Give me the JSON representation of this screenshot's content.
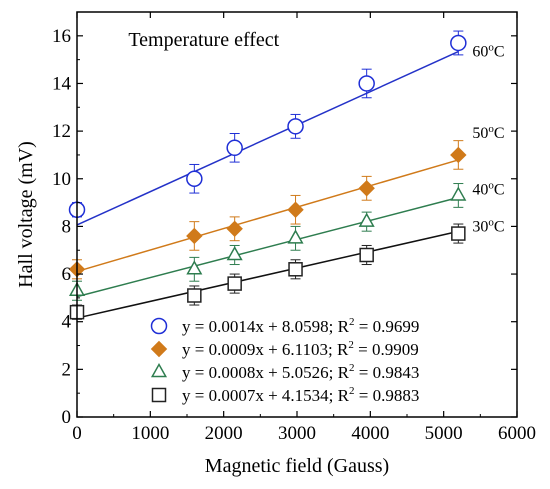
{
  "chart_data": {
    "type": "scatter",
    "title": "Temperature effect",
    "xlabel": "Magnetic field (Gauss)",
    "ylabel": "Hall voltage (mV)",
    "xlim": [
      0,
      6000
    ],
    "ylim": [
      0,
      17
    ],
    "xticks": [
      0,
      1000,
      2000,
      3000,
      4000,
      5000,
      6000
    ],
    "yticks": [
      0,
      2,
      4,
      6,
      8,
      10,
      12,
      14,
      16
    ],
    "grid": false,
    "legend_placement": "bottom-center",
    "series": [
      {
        "name": "60oC",
        "label_text": "60",
        "label_sup": "o",
        "label_unit": "C",
        "marker": "circle",
        "color": "#1f2fd6",
        "line_color": "#2432c8",
        "x": [
          0,
          1600,
          2150,
          2980,
          3950,
          5200
        ],
        "y": [
          8.7,
          10.0,
          11.3,
          12.2,
          14.0,
          15.7
        ],
        "yerr": [
          0.3,
          0.6,
          0.6,
          0.5,
          0.6,
          0.5
        ],
        "fit": {
          "slope": 0.0014,
          "intercept": 8.0598
        },
        "equation": "y = 0.0014x + 8.0598; R",
        "r2": " = 0.9699"
      },
      {
        "name": "50oC",
        "label_text": "50",
        "label_sup": "o",
        "label_unit": "C",
        "marker": "diamond",
        "color": "#d07a1a",
        "line_color": "#d07a1a",
        "x": [
          0,
          1600,
          2150,
          2980,
          3950,
          5200
        ],
        "y": [
          6.2,
          7.6,
          7.9,
          8.7,
          9.6,
          11.0
        ],
        "yerr": [
          0.4,
          0.6,
          0.5,
          0.6,
          0.5,
          0.6
        ],
        "fit": {
          "slope": 0.0009,
          "intercept": 6.1103
        },
        "equation": "y = 0.0009x + 6.1103; R",
        "r2": " = 0.9909"
      },
      {
        "name": "40oC",
        "label_text": "40",
        "label_sup": "o",
        "label_unit": "C",
        "marker": "triangle",
        "color": "#2e7d4f",
        "line_color": "#2e7d4f",
        "x": [
          0,
          1600,
          2150,
          2980,
          3950,
          5200
        ],
        "y": [
          5.3,
          6.2,
          6.8,
          7.5,
          8.2,
          9.3
        ],
        "yerr": [
          0.4,
          0.5,
          0.4,
          0.5,
          0.4,
          0.5
        ],
        "fit": {
          "slope": 0.0008,
          "intercept": 5.0526
        },
        "equation": "y = 0.0008x + 5.0526; R",
        "r2": " = 0.9843"
      },
      {
        "name": "30oC",
        "label_text": "30",
        "label_sup": "o",
        "label_unit": "C",
        "marker": "square",
        "color": "#222222",
        "line_color": "#111111",
        "x": [
          0,
          1600,
          2150,
          2980,
          3950,
          5200
        ],
        "y": [
          4.4,
          5.1,
          5.6,
          6.2,
          6.8,
          7.7
        ],
        "yerr": [
          0.3,
          0.4,
          0.4,
          0.4,
          0.4,
          0.4
        ],
        "fit": {
          "slope": 0.0007,
          "intercept": 4.1534
        },
        "equation": "y = 0.0007x + 4.1534; R",
        "r2": " = 0.9883"
      }
    ]
  }
}
